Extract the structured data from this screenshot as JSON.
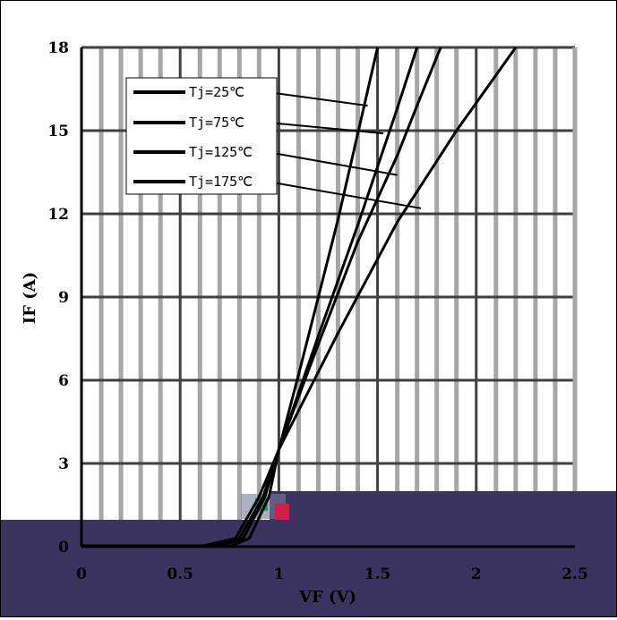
{
  "chart_data": {
    "type": "line",
    "title": "",
    "xlabel": "VF (V)",
    "ylabel": "IF (A)",
    "xlim": [
      0,
      2.5
    ],
    "ylim": [
      0,
      18
    ],
    "x_ticks": [
      "0",
      "0.5",
      "1",
      "1.5",
      "2",
      "2.5"
    ],
    "y_ticks": [
      "0",
      "3",
      "6",
      "9",
      "12",
      "15",
      "18"
    ],
    "grid": true,
    "legend_placement": "top-left",
    "series": [
      {
        "name": "Tj=25℃",
        "x": [
          0.75,
          0.85,
          0.95,
          1.0,
          1.1,
          1.2,
          1.3,
          1.4,
          1.5
        ],
        "values": [
          0,
          0.3,
          1.8,
          3.5,
          6.2,
          9.0,
          11.8,
          14.9,
          18
        ]
      },
      {
        "name": "Tj=75℃",
        "x": [
          0.7,
          0.82,
          0.93,
          1.0,
          1.2,
          1.4,
          1.5,
          1.6,
          1.7
        ],
        "values": [
          0,
          0.3,
          1.8,
          3.5,
          7.6,
          11.6,
          13.7,
          15.8,
          18
        ]
      },
      {
        "name": "Tj=125℃",
        "x": [
          0.65,
          0.8,
          0.92,
          1.0,
          1.2,
          1.4,
          1.6,
          1.7,
          1.82
        ],
        "values": [
          0,
          0.3,
          1.8,
          3.5,
          7.3,
          11.0,
          14.1,
          15.9,
          18
        ]
      },
      {
        "name": "Tj=175℃",
        "x": [
          0.6,
          0.78,
          0.9,
          1.0,
          1.3,
          1.6,
          1.9,
          2.2
        ],
        "values": [
          0,
          0.3,
          1.8,
          3.5,
          7.7,
          11.7,
          15.0,
          18
        ]
      }
    ],
    "legend_pointers": [
      {
        "series": "Tj=25℃",
        "x": 1.45,
        "y": 15.9
      },
      {
        "series": "Tj=75℃",
        "x": 1.53,
        "y": 14.9
      },
      {
        "series": "Tj=125℃",
        "x": 1.6,
        "y": 13.4
      },
      {
        "series": "Tj=175℃",
        "x": 1.72,
        "y": 12.2
      }
    ],
    "colors": {
      "line": "#000000",
      "grid": "#a6a6a6",
      "major_grid": "#404040",
      "band": "#3c3361"
    }
  }
}
